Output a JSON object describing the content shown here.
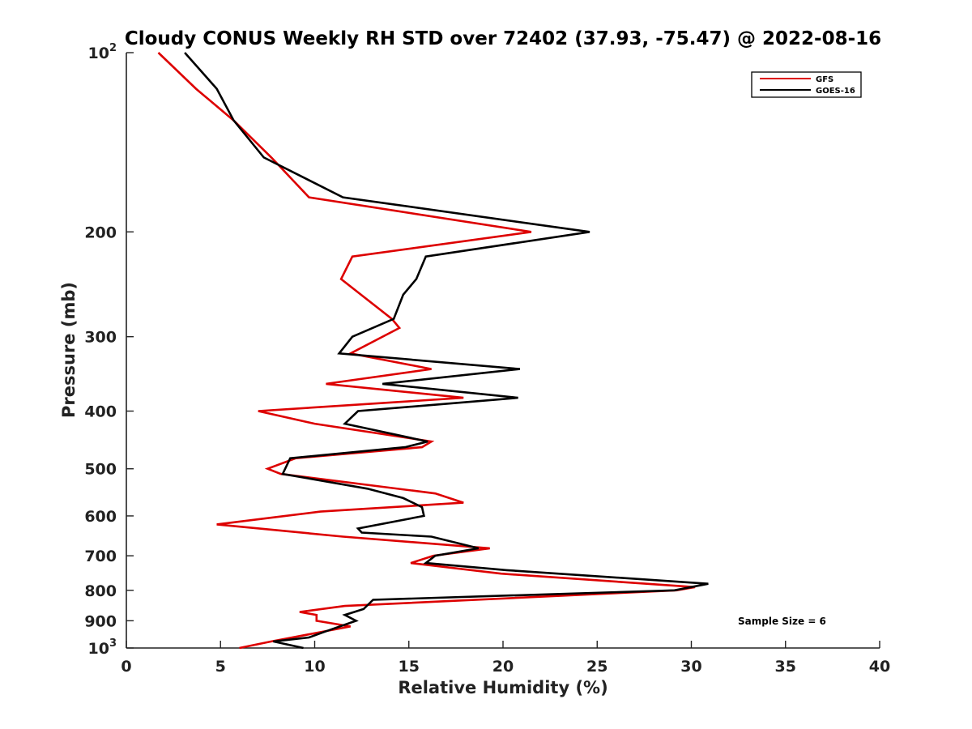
{
  "chart_data": {
    "type": "line",
    "title": "Cloudy CONUS Weekly RH STD over 72402 (37.93, -75.47) @ 2022-08-16",
    "xlabel": "Relative Humidity (%)",
    "ylabel": "Pressure (mb)",
    "xlim": [
      0,
      40
    ],
    "ylim": [
      100,
      1000
    ],
    "y_scale": "log",
    "y_reversed": true,
    "x_ticks": [
      0,
      5,
      10,
      15,
      20,
      25,
      30,
      35,
      40
    ],
    "y_ticks": [
      {
        "value": 100,
        "base": "10",
        "exp": "2"
      },
      {
        "value": 200,
        "label": "200"
      },
      {
        "value": 300,
        "label": "300"
      },
      {
        "value": 400,
        "label": "400"
      },
      {
        "value": 500,
        "label": "500"
      },
      {
        "value": 600,
        "label": "600"
      },
      {
        "value": 700,
        "label": "700"
      },
      {
        "value": 800,
        "label": "800"
      },
      {
        "value": 900,
        "label": "900"
      },
      {
        "value": 1000,
        "base": "10",
        "exp": "3"
      }
    ],
    "grid": false,
    "legend_position": "top-right",
    "annotation": "Sample Size = 6",
    "series": [
      {
        "name": "GFS",
        "color": "#dd0000",
        "points": [
          [
            1.7,
            100
          ],
          [
            3.7,
            115
          ],
          [
            5.7,
            130
          ],
          [
            7.7,
            150
          ],
          [
            9.7,
            175
          ],
          [
            21.5,
            200
          ],
          [
            12.0,
            220
          ],
          [
            11.4,
            240
          ],
          [
            14.1,
            280
          ],
          [
            14.5,
            290
          ],
          [
            11.9,
            320
          ],
          [
            16.2,
            340
          ],
          [
            10.6,
            360
          ],
          [
            17.9,
            380
          ],
          [
            7.0,
            400
          ],
          [
            10.0,
            420
          ],
          [
            16.2,
            450
          ],
          [
            15.7,
            460
          ],
          [
            9.0,
            480
          ],
          [
            7.5,
            500
          ],
          [
            8.2,
            510
          ],
          [
            16.4,
            550
          ],
          [
            17.9,
            570
          ],
          [
            10.3,
            590
          ],
          [
            4.8,
            620
          ],
          [
            11.5,
            650
          ],
          [
            19.3,
            680
          ],
          [
            16.3,
            700
          ],
          [
            15.1,
            720
          ],
          [
            19.9,
            750
          ],
          [
            30.2,
            790
          ],
          [
            29.2,
            800
          ],
          [
            11.6,
            850
          ],
          [
            9.2,
            870
          ],
          [
            10.1,
            880
          ],
          [
            10.1,
            900
          ],
          [
            11.9,
            920
          ],
          [
            7.7,
            975
          ],
          [
            6.0,
            1000
          ]
        ]
      },
      {
        "name": "GOES-16",
        "color": "#000000",
        "points": [
          [
            3.1,
            100
          ],
          [
            4.8,
            115
          ],
          [
            5.7,
            130
          ],
          [
            7.3,
            150
          ],
          [
            11.5,
            175
          ],
          [
            24.6,
            200
          ],
          [
            15.9,
            220
          ],
          [
            15.4,
            240
          ],
          [
            14.7,
            255
          ],
          [
            14.2,
            280
          ],
          [
            12.0,
            300
          ],
          [
            11.3,
            320
          ],
          [
            20.9,
            340
          ],
          [
            13.6,
            360
          ],
          [
            20.8,
            380
          ],
          [
            12.3,
            400
          ],
          [
            11.6,
            420
          ],
          [
            16.0,
            450
          ],
          [
            14.8,
            460
          ],
          [
            8.7,
            480
          ],
          [
            8.3,
            510
          ],
          [
            12.8,
            540
          ],
          [
            14.7,
            560
          ],
          [
            15.7,
            580
          ],
          [
            15.8,
            600
          ],
          [
            12.3,
            630
          ],
          [
            12.5,
            640
          ],
          [
            16.2,
            650
          ],
          [
            18.7,
            680
          ],
          [
            16.4,
            700
          ],
          [
            15.9,
            720
          ],
          [
            20.2,
            740
          ],
          [
            30.9,
            780
          ],
          [
            29.1,
            800
          ],
          [
            13.1,
            830
          ],
          [
            12.6,
            860
          ],
          [
            11.6,
            880
          ],
          [
            12.2,
            900
          ],
          [
            10.5,
            940
          ],
          [
            9.7,
            960
          ],
          [
            7.8,
            975
          ],
          [
            9.4,
            1000
          ]
        ]
      }
    ]
  }
}
